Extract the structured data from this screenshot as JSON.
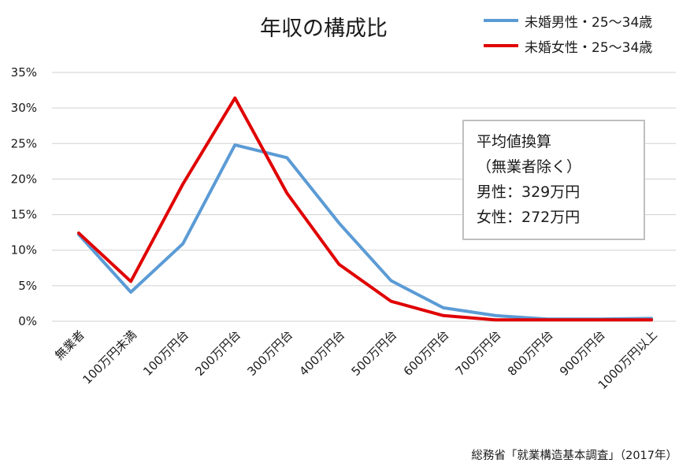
{
  "chart_data": {
    "type": "line",
    "title": "年収の構成比",
    "categories": [
      "無業者",
      "100万円未満",
      "100万円台",
      "200万円台",
      "300万円台",
      "400万円台",
      "500万円台",
      "600万円台",
      "700万円台",
      "800万円台",
      "900万円台",
      "1000万円以上"
    ],
    "series": [
      {
        "name": "未婚男性・25～34歳",
        "color": "#5b9bd5",
        "values": [
          12.2,
          4.1,
          10.9,
          24.8,
          23.0,
          13.8,
          5.7,
          1.9,
          0.8,
          0.3,
          0.3,
          0.4
        ]
      },
      {
        "name": "未婚女性・25～34歳",
        "color": "#e00000",
        "values": [
          12.4,
          5.6,
          19.3,
          31.4,
          18.0,
          8.0,
          2.8,
          0.8,
          0.2,
          0.2,
          0.2,
          0.2
        ]
      }
    ],
    "ylim": [
      0,
      35
    ],
    "yticks": [
      "0%",
      "5%",
      "10%",
      "15%",
      "20%",
      "25%",
      "30%",
      "35%"
    ],
    "grid": true,
    "legend_position": "top-right"
  },
  "annotation": {
    "lines": [
      "平均値換算",
      "（無業者除く）",
      "男性：329万円",
      "女性：272万円"
    ]
  },
  "source": "総務省「就業構造基本調査」（2017年）"
}
